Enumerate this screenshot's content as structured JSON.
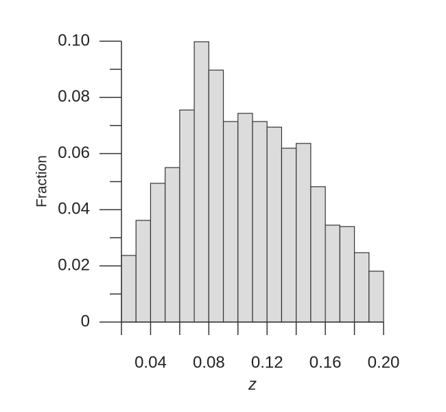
{
  "chart_data": {
    "type": "histogram",
    "xlabel": "z",
    "ylabel": "Fraction",
    "bins": [
      0.02,
      0.03,
      0.04,
      0.05,
      0.06,
      0.07,
      0.08,
      0.09,
      0.1,
      0.11,
      0.12,
      0.13,
      0.14,
      0.15,
      0.16,
      0.17,
      0.18,
      0.19,
      0.2
    ],
    "values": [
      0.0237,
      0.0362,
      0.0494,
      0.055,
      0.0755,
      0.0998,
      0.0897,
      0.0714,
      0.0743,
      0.0714,
      0.0694,
      0.0619,
      0.0636,
      0.0482,
      0.0345,
      0.034,
      0.0247,
      0.0181
    ],
    "color": "#dcdcdc",
    "xlim": [
      0.02,
      0.2
    ],
    "ylim": [
      0,
      0.1
    ],
    "xticks": [
      0.04,
      0.08,
      0.12,
      0.16,
      {
        "value": 0.2,
        "label": "0.20"
      }
    ],
    "xminorticks": [
      0.02,
      0.06,
      0.1,
      0.14,
      0.18
    ],
    "yticks": [
      0,
      0.02,
      0.04,
      0.06,
      0.08,
      {
        "value": 0.1,
        "label": "0.10"
      }
    ],
    "yminorticks": [
      0.01,
      0.03,
      0.05,
      0.07,
      0.09
    ]
  }
}
